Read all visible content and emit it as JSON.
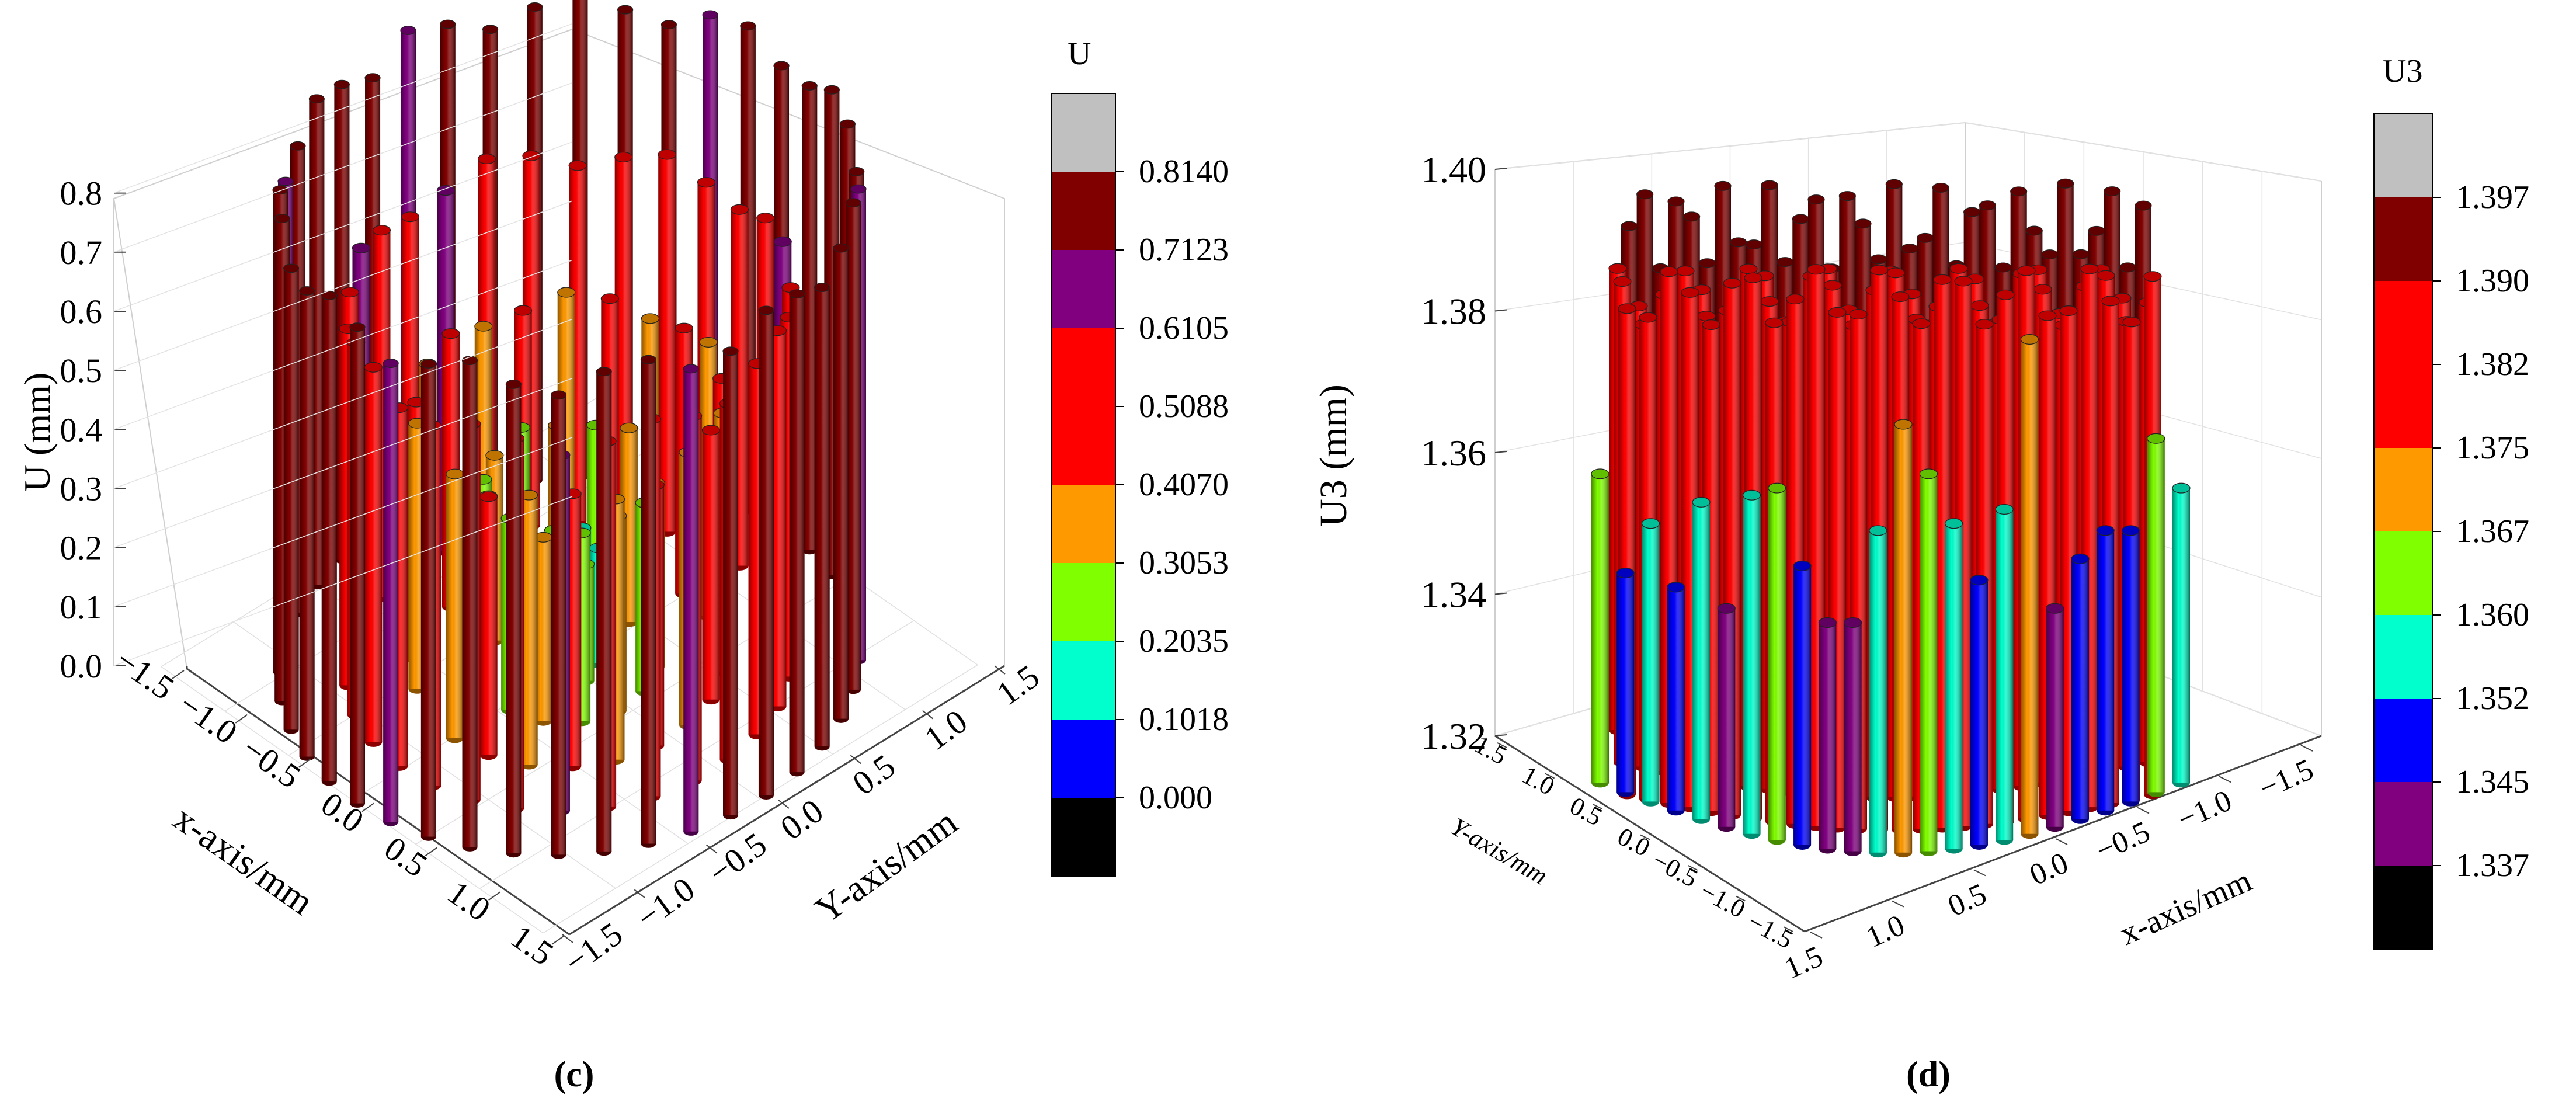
{
  "chart_data": [
    {
      "type": "3d-bar",
      "panel_label": "(c)",
      "zlabel": "U (mm)",
      "xlabel": "x-axis/mm",
      "ylabel": "Y-axis/mm",
      "x_ticks": [
        "−1.5",
        "−1.0",
        "−0.5",
        "0.0",
        "0.5",
        "1.0",
        "1.5"
      ],
      "y_ticks": [
        "1.5",
        "1.0",
        "0.5",
        "0.0",
        "−0.5",
        "−1.0",
        "−1.5"
      ],
      "z_ticks": [
        "0.0",
        "0.1",
        "0.2",
        "0.3",
        "0.4",
        "0.5",
        "0.6",
        "0.7",
        "0.8"
      ],
      "zlim": [
        0,
        0.85
      ],
      "colorbar": {
        "title": "U",
        "levels": [
          "0.8140",
          "0.7123",
          "0.6105",
          "0.5088",
          "0.4070",
          "0.3053",
          "0.2035",
          "0.1018",
          "0.000"
        ],
        "colors": [
          "#c0c0c0",
          "#800000",
          "#800080",
          "#ff0000",
          "#ff0000",
          "#ff9900",
          "#80ff00",
          "#00ffcc",
          "#0000ff",
          "#000000"
        ]
      },
      "rings": [
        {
          "radius_mm": 1.5,
          "count": 40,
          "value": 0.8,
          "color": "#800000",
          "alt_color": "#800080",
          "alt_every": 7
        },
        {
          "radius_mm": 1.15,
          "count": 30,
          "value": 0.62,
          "color": "#ff0000",
          "alt_color": "#800080",
          "alt_every": 9
        },
        {
          "radius_mm": 0.8,
          "count": 22,
          "value": 0.45,
          "color": "#ff0000",
          "alt_color": "#ff9900",
          "alt_every": 2
        },
        {
          "radius_mm": 0.45,
          "count": 14,
          "value": 0.32,
          "color": "#ff9900",
          "alt_color": "#80ff00",
          "alt_every": 2
        },
        {
          "radius_mm": 0.15,
          "count": 6,
          "value": 0.2,
          "color": "#00ffcc",
          "alt_color": "#80ff00",
          "alt_every": 3
        }
      ]
    },
    {
      "type": "3d-bar",
      "panel_label": "(d)",
      "zlabel": "U3 (mm)",
      "xlabel": "x-axis/mm",
      "ylabel": "Y-axis/mm",
      "x_ticks": [
        "1.5",
        "1.0",
        "0.5",
        "0.0",
        "−0.5",
        "−1.0",
        "−1.5"
      ],
      "y_ticks": [
        "−1.5",
        "−1.0",
        "−0.5",
        "0.0",
        "0.5",
        "1.0",
        "1.5"
      ],
      "z_ticks": [
        "1.32",
        "1.34",
        "1.36",
        "1.38",
        "1.40"
      ],
      "zlim": [
        1.32,
        1.4
      ],
      "colorbar": {
        "title": "U3",
        "levels": [
          "1.397",
          "1.390",
          "1.382",
          "1.375",
          "1.367",
          "1.360",
          "1.352",
          "1.345",
          "1.337"
        ],
        "colors": [
          "#c0c0c0",
          "#800000",
          "#ff0000",
          "#ff0000",
          "#ff9900",
          "#80ff00",
          "#00ffcc",
          "#0000ff",
          "#800080",
          "#000000"
        ]
      },
      "front_columns": [
        {
          "value": 1.357,
          "color": "#80ff00"
        },
        {
          "value": 1.343,
          "color": "#0000ff"
        },
        {
          "value": 1.35,
          "color": "#00ffcc"
        },
        {
          "value": 1.341,
          "color": "#0000ff"
        },
        {
          "value": 1.353,
          "color": "#00ffcc"
        },
        {
          "value": 1.338,
          "color": "#800080"
        },
        {
          "value": 1.354,
          "color": "#00ffcc"
        },
        {
          "value": 1.355,
          "color": "#80ff00"
        },
        {
          "value": 1.344,
          "color": "#0000ff"
        },
        {
          "value": 1.336,
          "color": "#800080"
        },
        {
          "value": 1.336,
          "color": "#800080"
        },
        {
          "value": 1.349,
          "color": "#00ffcc"
        },
        {
          "value": 1.364,
          "color": "#ff9900"
        },
        {
          "value": 1.357,
          "color": "#80ff00"
        },
        {
          "value": 1.35,
          "color": "#00ffcc"
        },
        {
          "value": 1.342,
          "color": "#0000ff"
        },
        {
          "value": 1.352,
          "color": "#00ffcc"
        },
        {
          "value": 1.376,
          "color": "#ff9900"
        },
        {
          "value": 1.338,
          "color": "#800080"
        },
        {
          "value": 1.345,
          "color": "#0000ff"
        },
        {
          "value": 1.349,
          "color": "#0000ff"
        },
        {
          "value": 1.349,
          "color": "#0000ff"
        },
        {
          "value": 1.362,
          "color": "#80ff00"
        },
        {
          "value": 1.355,
          "color": "#00ffcc"
        }
      ],
      "red_block_value": 1.382,
      "top_ring_value": 1.392
    }
  ]
}
